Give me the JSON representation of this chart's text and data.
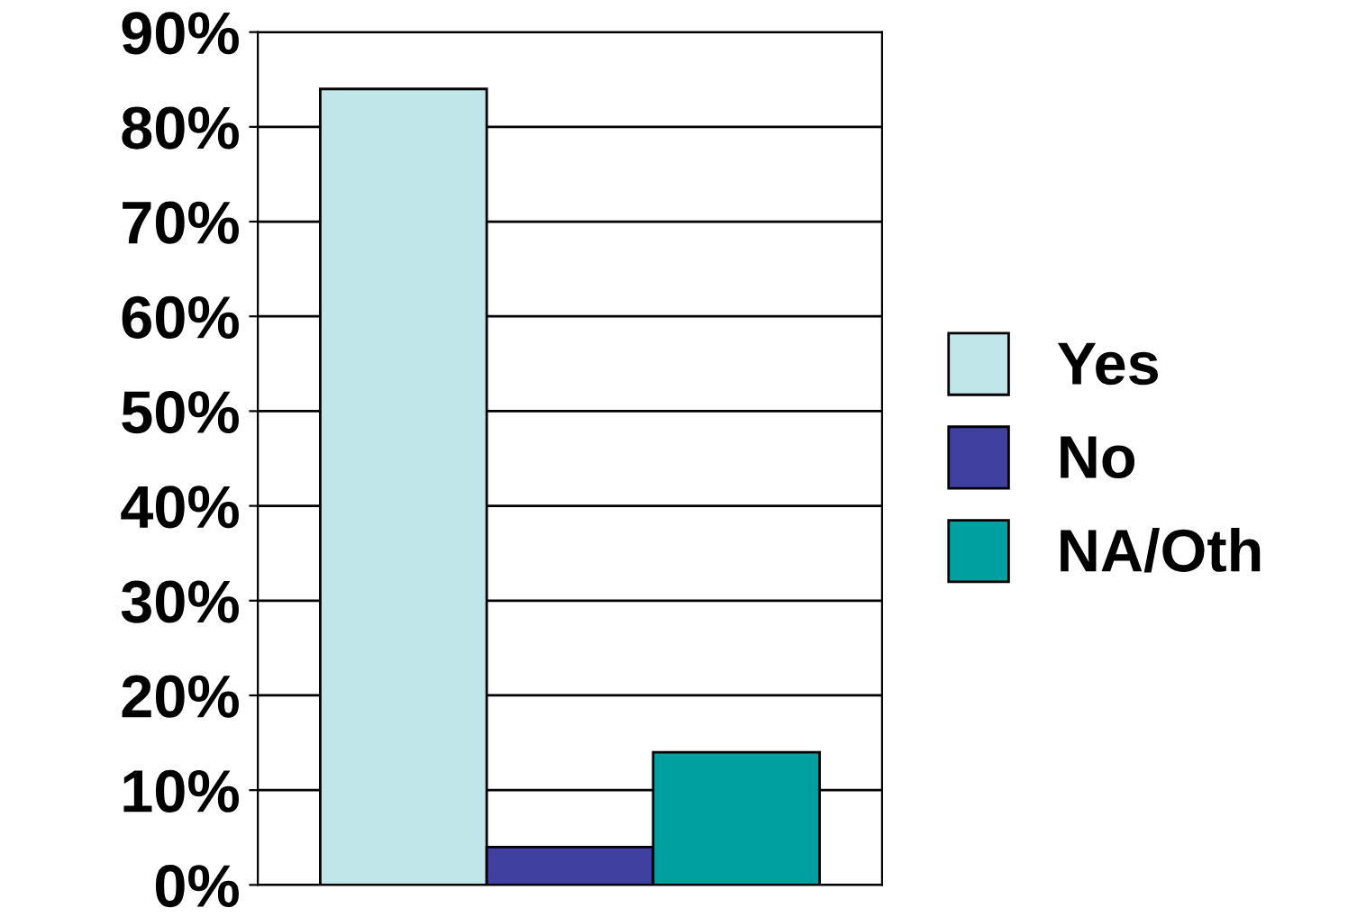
{
  "chart_data": {
    "type": "bar",
    "categories": [
      null
    ],
    "series": [
      {
        "name": "Yes",
        "color": "#c0e6ea",
        "values": [
          84
        ]
      },
      {
        "name": "No",
        "color": "#4040a0",
        "values": [
          4
        ]
      },
      {
        "name": "NA/Oth",
        "color": "#00a0a0",
        "values": [
          14
        ]
      }
    ],
    "ylim": [
      0,
      90
    ],
    "yticks": [
      {
        "value": 0,
        "label": "0%"
      },
      {
        "value": 10,
        "label": "10%"
      },
      {
        "value": 20,
        "label": "20%"
      },
      {
        "value": 30,
        "label": "30%"
      },
      {
        "value": 40,
        "label": "40%"
      },
      {
        "value": 50,
        "label": "50%"
      },
      {
        "value": 60,
        "label": "60%"
      },
      {
        "value": 70,
        "label": "70%"
      },
      {
        "value": 80,
        "label": "80%"
      },
      {
        "value": 90,
        "label": "90%"
      }
    ],
    "grid": "y",
    "legend": "right"
  }
}
